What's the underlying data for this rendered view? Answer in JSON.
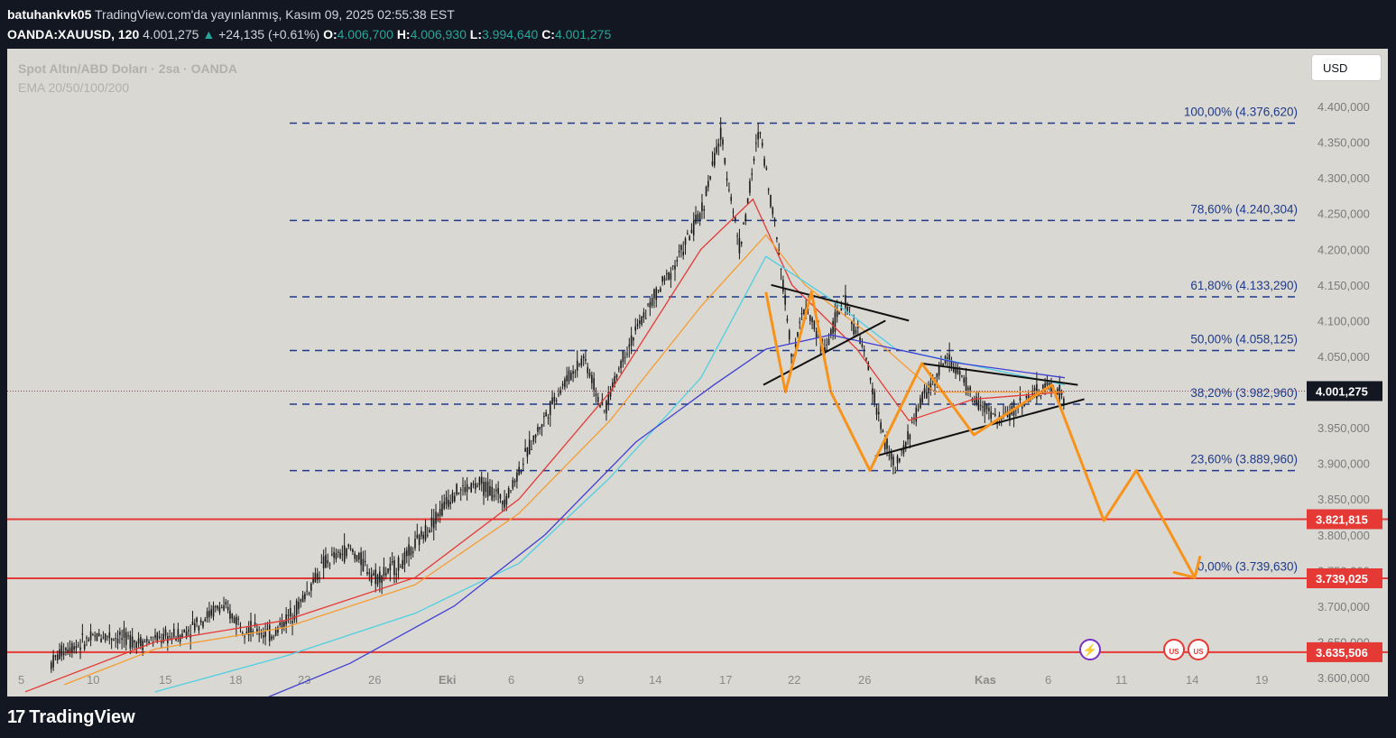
{
  "header": {
    "author": "batuhankvk05",
    "published": "TradingView.com'da yayınlanmış, Kasım 09, 2025 02:55:38 EST",
    "symbol": "OANDA:XAUUSD, 120",
    "last": "4.001,275",
    "change": "+24,135 (+0.61%)",
    "o_label": "O:",
    "o": "4.006,700",
    "h_label": "H:",
    "h": "4.006,930",
    "l_label": "L:",
    "l": "3.994,640",
    "c_label": "C:",
    "c": "4.001,275"
  },
  "legend": {
    "title": "Spot Altın/ABD Doları · 2sa · OANDA",
    "indicator": "EMA 20/50/100/200"
  },
  "currency_button": "USD",
  "brand": "TradingView",
  "colors": {
    "background": "#dad8d3",
    "candle": "#1a1a1a",
    "fib_line": "#1e3a8a",
    "fib_text": "#1e3a8a",
    "support_line": "#e53935",
    "ema20": "#e53935",
    "ema50": "#f59d33",
    "ema100": "#4dd0e1",
    "ema200": "#3f3fd4",
    "projection": "#f7931a",
    "triangle": "#111111",
    "last_price_bg": "#131722",
    "up": "#26a69a"
  },
  "chart_data": {
    "type": "candlestick",
    "symbol": "OANDA:XAUUSD",
    "interval": "2h",
    "ylim": [
      3560000,
      4420000
    ],
    "y_ticks": [
      "4.400,000",
      "4.350,000",
      "4.300,000",
      "4.250,000",
      "4.200,000",
      "4.150,000",
      "4.100,000",
      "4.050,000",
      "4.000,000",
      "3.950,000",
      "3.900,000",
      "3.850,000",
      "3.800,000",
      "3.750,000",
      "3.700,000",
      "3.650,000",
      "3.600,000"
    ],
    "x_ticks": [
      "5",
      "10",
      "15",
      "18",
      "23",
      "26",
      "Eki",
      "6",
      "9",
      "14",
      "17",
      "22",
      "26",
      "Kas",
      "6",
      "11",
      "14",
      "19"
    ],
    "fib_levels": [
      {
        "label": "100,00% (4.376,620)",
        "value": 4376620
      },
      {
        "label": "78,60% (4.240,304)",
        "value": 4240304
      },
      {
        "label": "61,80% (4.133,290)",
        "value": 4133290
      },
      {
        "label": "50,00% (4.058,125)",
        "value": 4058125
      },
      {
        "label": "38,20% (3.982,960)",
        "value": 3982960
      },
      {
        "label": "23,60% (3.889,960)",
        "value": 3889960
      },
      {
        "label": "0,00% (3.739,630)",
        "value": 3739630
      }
    ],
    "support_levels": [
      {
        "label": "3.821,815",
        "value": 3821815
      },
      {
        "label": "3.739,025",
        "value": 3739025
      },
      {
        "label": "3.635,506",
        "value": 3635506
      }
    ],
    "last_price": {
      "label": "4.001,275",
      "value": 4001275
    },
    "price_path": [
      [
        0,
        3580000
      ],
      [
        0.03,
        3640000
      ],
      [
        0.06,
        3660000
      ],
      [
        0.09,
        3650000
      ],
      [
        0.12,
        3660000
      ],
      [
        0.15,
        3700000
      ],
      [
        0.17,
        3670000
      ],
      [
        0.19,
        3660000
      ],
      [
        0.21,
        3700000
      ],
      [
        0.23,
        3760000
      ],
      [
        0.25,
        3780000
      ],
      [
        0.27,
        3740000
      ],
      [
        0.29,
        3760000
      ],
      [
        0.31,
        3810000
      ],
      [
        0.33,
        3860000
      ],
      [
        0.35,
        3870000
      ],
      [
        0.37,
        3850000
      ],
      [
        0.39,
        3930000
      ],
      [
        0.41,
        4000000
      ],
      [
        0.43,
        4050000
      ],
      [
        0.445,
        3970000
      ],
      [
        0.46,
        4050000
      ],
      [
        0.48,
        4120000
      ],
      [
        0.5,
        4180000
      ],
      [
        0.52,
        4250000
      ],
      [
        0.535,
        4360000
      ],
      [
        0.55,
        4200000
      ],
      [
        0.565,
        4370000
      ],
      [
        0.58,
        4200000
      ],
      [
        0.59,
        4050000
      ],
      [
        0.6,
        4120000
      ],
      [
        0.615,
        4060000
      ],
      [
        0.63,
        4130000
      ],
      [
        0.645,
        4060000
      ],
      [
        0.66,
        3940000
      ],
      [
        0.67,
        3890000
      ],
      [
        0.69,
        3990000
      ],
      [
        0.71,
        4050000
      ],
      [
        0.73,
        3990000
      ],
      [
        0.75,
        3960000
      ],
      [
        0.77,
        3990000
      ],
      [
        0.79,
        4010000
      ],
      [
        0.8,
        3990000
      ]
    ],
    "ema": [
      {
        "name": "EMA 20",
        "color": "#e53935",
        "points": [
          [
            0,
            3580000
          ],
          [
            0.1,
            3650000
          ],
          [
            0.2,
            3680000
          ],
          [
            0.3,
            3740000
          ],
          [
            0.38,
            3850000
          ],
          [
            0.45,
            4000000
          ],
          [
            0.52,
            4200000
          ],
          [
            0.56,
            4270000
          ],
          [
            0.59,
            4150000
          ],
          [
            0.64,
            4060000
          ],
          [
            0.68,
            3960000
          ],
          [
            0.73,
            3990000
          ],
          [
            0.8,
            4000000
          ]
        ]
      },
      {
        "name": "EMA 50",
        "color": "#f59d33",
        "points": [
          [
            0.03,
            3590000
          ],
          [
            0.1,
            3640000
          ],
          [
            0.2,
            3670000
          ],
          [
            0.3,
            3730000
          ],
          [
            0.38,
            3830000
          ],
          [
            0.45,
            3960000
          ],
          [
            0.52,
            4120000
          ],
          [
            0.57,
            4220000
          ],
          [
            0.6,
            4150000
          ],
          [
            0.65,
            4080000
          ],
          [
            0.7,
            4000000
          ],
          [
            0.8,
            4000000
          ]
        ]
      },
      {
        "name": "EMA 100",
        "color": "#4dd0e1",
        "points": [
          [
            0.1,
            3580000
          ],
          [
            0.2,
            3630000
          ],
          [
            0.3,
            3690000
          ],
          [
            0.38,
            3760000
          ],
          [
            0.45,
            3880000
          ],
          [
            0.52,
            4020000
          ],
          [
            0.57,
            4190000
          ],
          [
            0.62,
            4130000
          ],
          [
            0.67,
            4060000
          ],
          [
            0.8,
            4010000
          ]
        ]
      },
      {
        "name": "EMA 200",
        "color": "#3f3fd4",
        "points": [
          [
            0.17,
            3560000
          ],
          [
            0.25,
            3620000
          ],
          [
            0.33,
            3700000
          ],
          [
            0.4,
            3800000
          ],
          [
            0.47,
            3930000
          ],
          [
            0.53,
            4010000
          ],
          [
            0.57,
            4060000
          ],
          [
            0.62,
            4080000
          ],
          [
            0.67,
            4060000
          ],
          [
            0.72,
            4040000
          ],
          [
            0.8,
            4020000
          ]
        ]
      }
    ],
    "projection": [
      [
        0.57,
        4140000
      ],
      [
        0.585,
        4000000
      ],
      [
        0.605,
        4140000
      ],
      [
        0.62,
        4000000
      ],
      [
        0.65,
        3890000
      ],
      [
        0.69,
        4040000
      ],
      [
        0.73,
        3940000
      ],
      [
        0.79,
        4010000
      ],
      [
        0.83,
        3820000
      ],
      [
        0.855,
        3890000
      ],
      [
        0.9,
        3740000
      ]
    ],
    "triangles": [
      [
        [
          0.574,
          4150000
        ],
        [
          0.68,
          4100000
        ]
      ],
      [
        [
          0.568,
          4010000
        ],
        [
          0.662,
          4100000
        ]
      ],
      [
        [
          0.69,
          4040000
        ],
        [
          0.81,
          4010000
        ]
      ],
      [
        [
          0.654,
          3910000
        ],
        [
          0.815,
          3990000
        ]
      ]
    ],
    "events_icons": [
      "lightning-icon",
      "us-flag-icon",
      "us-flag-icon"
    ]
  }
}
